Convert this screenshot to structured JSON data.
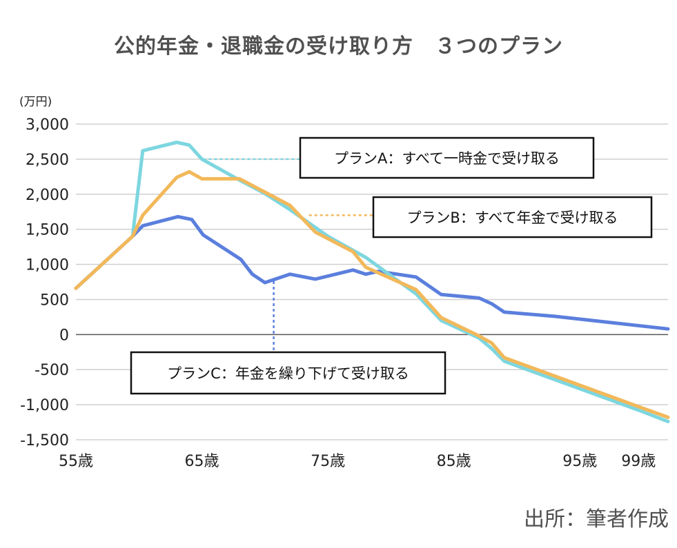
{
  "title": "公的年金・退職金の受け取り方　３つのプラン",
  "source": "出所：筆者作成",
  "chart_data": {
    "type": "line",
    "title": "公的年金・退職金の受け取り方　３つのプラン",
    "unit_label": "(万円)",
    "xlabel": "",
    "ylabel": "(万円)",
    "xlim": [
      55,
      102
    ],
    "ylim": [
      -1500,
      3000
    ],
    "yticks": [
      3000,
      2500,
      2000,
      1500,
      1000,
      500,
      0,
      -500,
      -1000,
      -1500
    ],
    "ytick_labels": [
      "3,000",
      "2,500",
      "2,000",
      "1,500",
      "1,000",
      "500",
      "0",
      "-500",
      "-1,000",
      "-1,500"
    ],
    "xticks": [
      55,
      65,
      75,
      85,
      95,
      99
    ],
    "xtick_labels": [
      "55歳",
      "65歳",
      "75歳",
      "85歳",
      "95歳",
      "99歳"
    ],
    "grid": true,
    "series": [
      {
        "name": "プランC：年金を繰り下げて受け取る",
        "color": "#5b7fdd",
        "x": [
          55,
          59.5,
          60.3,
          63.1,
          64.2,
          65.1,
          68.1,
          69,
          70,
          72,
          74,
          77,
          78,
          79,
          82,
          84,
          87,
          88,
          89,
          93,
          97,
          102
        ],
        "values": [
          660,
          1400,
          1550,
          1680,
          1640,
          1420,
          1070,
          860,
          740,
          860,
          790,
          920,
          860,
          900,
          820,
          570,
          520,
          440,
          320,
          260,
          180,
          80
        ]
      },
      {
        "name": "プランA：すべて一時金で受け取る",
        "color": "#7dd6df",
        "x": [
          55,
          59.5,
          60.3,
          63,
          64,
          65,
          68,
          70,
          72,
          75,
          78,
          82,
          84,
          87,
          88,
          89,
          100,
          102
        ],
        "values": [
          660,
          1400,
          2620,
          2740,
          2700,
          2500,
          2200,
          2010,
          1780,
          1400,
          1100,
          580,
          200,
          -50,
          -200,
          -380,
          -1100,
          -1240
        ]
      },
      {
        "name": "プランB：すべて年金で受け取る",
        "color": "#f2b85a",
        "x": [
          55,
          59.5,
          60.3,
          63,
          64,
          65,
          68,
          72,
          74,
          77,
          78,
          82,
          84,
          87,
          88,
          89,
          100,
          102
        ],
        "values": [
          660,
          1400,
          1700,
          2240,
          2320,
          2220,
          2220,
          1840,
          1460,
          1180,
          960,
          640,
          240,
          -20,
          -120,
          -330,
          -1050,
          -1180
        ]
      }
    ],
    "annotations": [
      {
        "label": "プランA：すべて一時金で受け取る",
        "series": "プランA：すべて一時金で受け取る",
        "anchor_x": 65.1,
        "anchor_y": 2500
      },
      {
        "label": "プランB：すべて年金で受け取る",
        "series": "プランB：すべて年金で受け取る",
        "anchor_x": 73.5,
        "anchor_y": 1700
      },
      {
        "label": "プランC：年金を繰り下げて受け取る",
        "series": "プランC：年金を繰り下げて受け取る",
        "anchor_x": 70.7,
        "anchor_y": 760
      }
    ]
  }
}
